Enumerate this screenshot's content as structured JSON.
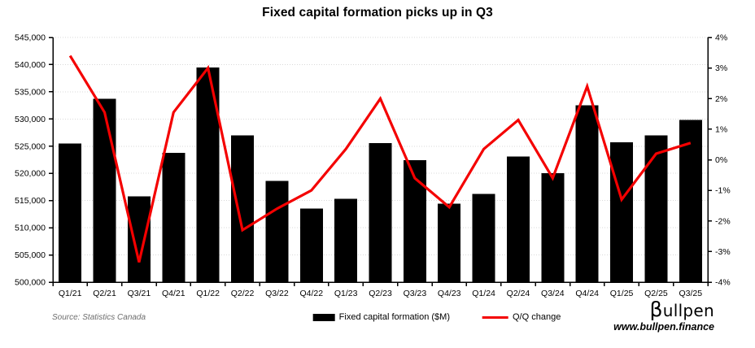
{
  "title": "Fixed capital formation picks up in Q3",
  "source": "Source: Statistics Canada",
  "legend": {
    "bars_label": "Fixed capital formation ($M)",
    "line_label": "Q/Q change"
  },
  "branding": {
    "logo_beta": "β",
    "logo_rest": "ullpen",
    "url": "www.bullpen.finance"
  },
  "colors": {
    "bar": "#000000",
    "line": "#f40000",
    "grid": "#d9d9d9",
    "axis": "#000000",
    "tick_label": "#000000",
    "source_text": "#6e6e6e"
  },
  "chart_data": {
    "type": "bar+line combo",
    "title": "Fixed capital formation picks up in Q3",
    "categories": [
      "Q1/21",
      "Q2/21",
      "Q3/21",
      "Q4/21",
      "Q1/22",
      "Q2/22",
      "Q3/22",
      "Q4/22",
      "Q1/23",
      "Q2/23",
      "Q3/23",
      "Q4/23",
      "Q1/24",
      "Q2/24",
      "Q3/24",
      "Q4/24",
      "Q1/25",
      "Q2/25",
      "Q3/25"
    ],
    "series": [
      {
        "name": "Fixed capital formation ($M)",
        "type": "bar",
        "axis": "left",
        "values": [
          525500,
          533700,
          515800,
          523800,
          539500,
          527000,
          518600,
          513500,
          515300,
          525600,
          522400,
          514400,
          516200,
          523100,
          520000,
          532500,
          525700,
          527000,
          529800
        ]
      },
      {
        "name": "Q/Q change",
        "type": "line",
        "axis": "right",
        "values": [
          3.4,
          1.55,
          -3.35,
          1.55,
          3.0,
          -2.3,
          -1.6,
          -1.0,
          0.35,
          2.0,
          -0.6,
          -1.55,
          0.35,
          1.3,
          -0.6,
          2.4,
          -1.3,
          0.2,
          0.55
        ]
      }
    ],
    "left_axis": {
      "min": 500000,
      "max": 545000,
      "step": 5000,
      "tick_labels": [
        "500,000",
        "505,000",
        "510,000",
        "515,000",
        "520,000",
        "525,000",
        "530,000",
        "535,000",
        "540,000",
        "545,000"
      ]
    },
    "right_axis": {
      "min": -4,
      "max": 4,
      "step": 1,
      "tick_labels": [
        "-4%",
        "-3%",
        "-2%",
        "-1%",
        "0%",
        "1%",
        "2%",
        "3%",
        "4%"
      ]
    },
    "grid": "dotted horizontal gridlines at left-axis steps",
    "legend_position": "bottom-center"
  }
}
